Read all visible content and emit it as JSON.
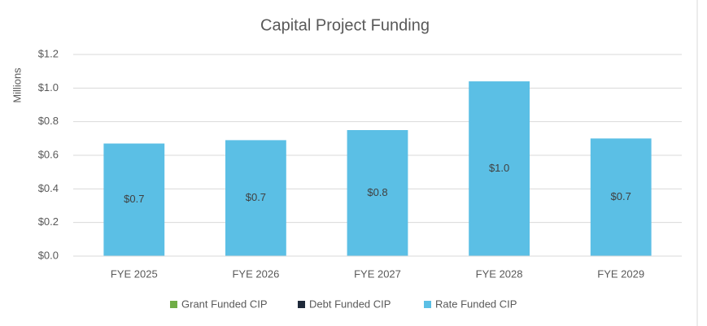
{
  "chart_data": {
    "type": "bar",
    "stacked": true,
    "title": "Capital Project Funding",
    "y_label": "Millions",
    "categories": [
      "FYE 2025",
      "FYE 2026",
      "FYE 2027",
      "FYE 2028",
      "FYE 2029"
    ],
    "series": [
      {
        "name": "Grant Funded CIP",
        "color": "#70ad47",
        "values": [
          0,
          0,
          0,
          0,
          0
        ]
      },
      {
        "name": "Debt Funded CIP",
        "color": "#1f2a3a",
        "values": [
          0,
          0,
          0,
          0,
          0
        ]
      },
      {
        "name": "Rate Funded CIP",
        "color": "#5bbfe5",
        "values": [
          0.67,
          0.69,
          0.75,
          1.04,
          0.7
        ],
        "value_labels": [
          "$0.7",
          "$0.7",
          "$0.8",
          "$1.0",
          "$0.7"
        ]
      }
    ],
    "ylim": [
      0,
      1.2
    ],
    "yticks": [
      {
        "value": 0,
        "label": "$0.0"
      },
      {
        "value": 0.2,
        "label": "$0.2"
      },
      {
        "value": 0.4,
        "label": "$0.4"
      },
      {
        "value": 0.6,
        "label": "$0.6"
      },
      {
        "value": 0.8,
        "label": "$0.8"
      },
      {
        "value": 1.0,
        "label": "$1.0"
      },
      {
        "value": 1.2,
        "label": "$1.2"
      }
    ],
    "grid": true,
    "legend": "bottom"
  }
}
